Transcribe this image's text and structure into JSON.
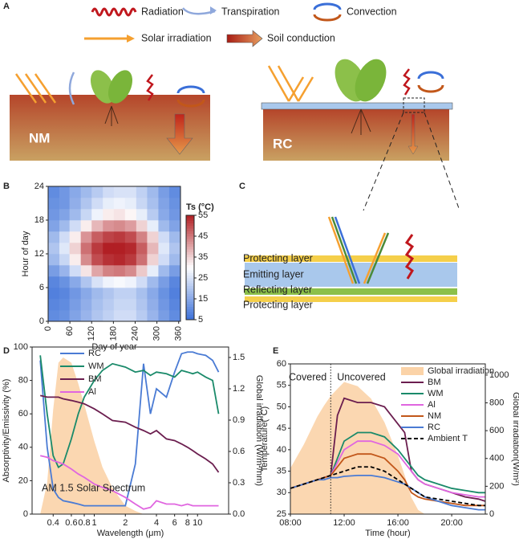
{
  "diagram_a": {
    "panel_label": "A",
    "legend": [
      "Radiation",
      "Transpiration",
      "Convection",
      "Solar irradiation",
      "Soil conduction"
    ],
    "labels": [
      "NM",
      "RC"
    ]
  },
  "diagram_c": {
    "panel_label": "C",
    "layers": [
      "Protecting layer",
      "Emitting layer",
      "Reflecting layer",
      "Protecting layer"
    ]
  },
  "chart_data": [
    {
      "type": "heatmap",
      "panel_label": "B",
      "x_label": "Day of year",
      "y_label": "Hour of day",
      "colorbar_label": "Ts (°C)",
      "xbins": [
        0,
        31,
        59,
        90,
        120,
        151,
        181,
        212,
        243,
        273,
        304,
        334,
        365
      ],
      "ybins": [
        0,
        2,
        4,
        6,
        8,
        10,
        12,
        14,
        16,
        18,
        20,
        22,
        24
      ],
      "xlim": [
        0,
        365
      ],
      "ylim": [
        0,
        24
      ],
      "xticks": [
        0,
        60,
        120,
        180,
        240,
        300,
        360
      ],
      "yticks": [
        0,
        6,
        12,
        18,
        24
      ],
      "clim": [
        5,
        55
      ],
      "cticks": [
        5,
        15,
        25,
        35,
        45,
        55
      ],
      "colorscale": [
        "#3a6fd8",
        "#ffffff",
        "#b11f24"
      ],
      "values": [
        [
          10,
          11,
          14,
          17,
          20,
          22,
          24,
          24,
          21,
          17,
          13,
          10
        ],
        [
          9,
          10,
          13,
          16,
          19,
          21,
          23,
          23,
          20,
          16,
          12,
          9
        ],
        [
          8,
          9,
          12,
          15,
          18,
          20,
          22,
          22,
          19,
          15,
          11,
          8
        ],
        [
          9,
          11,
          15,
          20,
          25,
          28,
          29,
          28,
          24,
          18,
          13,
          9
        ],
        [
          13,
          17,
          24,
          33,
          40,
          44,
          45,
          43,
          36,
          27,
          18,
          13
        ],
        [
          18,
          23,
          32,
          43,
          50,
          53,
          54,
          52,
          46,
          35,
          24,
          18
        ],
        [
          20,
          26,
          35,
          46,
          52,
          55,
          55,
          54,
          48,
          38,
          26,
          20
        ],
        [
          18,
          24,
          32,
          42,
          48,
          51,
          52,
          50,
          44,
          35,
          24,
          18
        ],
        [
          14,
          18,
          24,
          32,
          38,
          42,
          43,
          41,
          35,
          27,
          18,
          14
        ],
        [
          12,
          14,
          18,
          23,
          28,
          32,
          33,
          31,
          27,
          21,
          15,
          12
        ],
        [
          11,
          12,
          16,
          20,
          24,
          27,
          28,
          27,
          23,
          19,
          14,
          11
        ],
        [
          10,
          12,
          15,
          18,
          21,
          24,
          25,
          25,
          22,
          18,
          13,
          10
        ]
      ]
    },
    {
      "type": "line",
      "panel_label": "D",
      "x_label": "Wavelength (μm)",
      "y_label": "Absorptivity/Emissivity (%)",
      "y2_label": "Global irradiation (W/m²/nm)",
      "xlog": true,
      "xlim": [
        0.25,
        20
      ],
      "xticks": [
        0.4,
        0.6,
        0.8,
        1,
        2,
        4,
        6,
        8,
        10
      ],
      "ylim": [
        0,
        100
      ],
      "yticks": [
        0,
        20,
        40,
        60,
        80,
        100
      ],
      "y2lim": [
        0,
        1.6
      ],
      "y2ticks": [
        {
          "value": 0,
          "label": "0.0"
        },
        0.3,
        0.6,
        0.9,
        1.2,
        1.5
      ],
      "x": [
        0.3,
        0.35,
        0.4,
        0.45,
        0.5,
        0.6,
        0.7,
        0.8,
        1,
        1.2,
        1.5,
        2,
        2.5,
        3,
        3.5,
        4,
        5,
        6,
        7,
        8,
        9,
        10,
        12,
        14,
        16
      ],
      "series": [
        {
          "name": "AM 1.5 Solar Spectrum",
          "color": "#fbd3a8",
          "axis": "y2",
          "fill": true,
          "legend": false,
          "values": [
            0.0,
            0.3,
            1.0,
            1.45,
            1.5,
            1.45,
            1.25,
            1.05,
            0.7,
            0.45,
            0.25,
            0.08,
            0.03,
            0,
            0,
            0,
            0,
            0,
            0,
            0,
            0,
            0,
            0,
            0,
            0
          ]
        },
        {
          "name": "RC",
          "color": "#4a7bd4",
          "values": [
            92,
            40,
            15,
            10,
            8,
            7,
            6,
            5,
            5,
            5,
            5,
            5,
            30,
            90,
            60,
            75,
            70,
            85,
            96,
            97,
            97,
            96,
            95,
            92,
            85
          ]
        },
        {
          "name": "WM",
          "color": "#1a8a6a",
          "values": [
            95,
            60,
            35,
            28,
            30,
            45,
            60,
            70,
            80,
            86,
            90,
            88,
            85,
            86,
            83,
            85,
            84,
            82,
            86,
            85,
            84,
            85,
            82,
            80,
            60
          ]
        },
        {
          "name": "BM",
          "color": "#6b1e4f",
          "values": [
            71,
            70,
            70,
            70,
            69,
            68,
            67,
            66,
            63,
            60,
            56,
            55,
            52,
            50,
            48,
            50,
            45,
            44,
            42,
            40,
            38,
            36,
            33,
            30,
            25
          ]
        },
        {
          "name": "Al",
          "color": "#e066e0",
          "values": [
            35,
            34,
            32,
            31,
            30,
            27,
            24,
            22,
            18,
            16,
            14,
            10,
            6,
            3,
            4,
            8,
            6,
            6,
            5,
            6,
            5,
            5,
            5,
            5,
            5
          ]
        }
      ]
    },
    {
      "type": "line",
      "panel_label": "E",
      "x_label": "Time (hour)",
      "y_label": "Temperature(°C)",
      "y2_label": "Global irradiation(W/m²)",
      "xlim": [
        8,
        22.5
      ],
      "xticks": [
        {
          "value": 8,
          "label": "08:00"
        },
        {
          "value": 12,
          "label": "12:00"
        },
        {
          "value": 16,
          "label": "16:00"
        },
        {
          "value": 20,
          "label": "20:00"
        }
      ],
      "ylim": [
        25,
        60
      ],
      "yticks": [
        25,
        30,
        35,
        40,
        45,
        50,
        55,
        60
      ],
      "y2lim": [
        0,
        1080
      ],
      "y2ticks": [
        0,
        200,
        400,
        600,
        800,
        1000
      ],
      "divider_x": 11,
      "annotations": [
        "Covered",
        "Uncovered"
      ],
      "x": [
        8,
        9,
        10,
        10.5,
        11,
        11.5,
        12,
        13,
        14,
        15,
        16,
        16.5,
        17,
        17.5,
        18,
        19,
        20,
        21,
        22,
        22.5
      ],
      "series": [
        {
          "name": "Global irradiation",
          "color": "#fbd3a8",
          "axis": "y2",
          "fill": true,
          "values": [
            330,
            500,
            700,
            780,
            850,
            900,
            950,
            920,
            830,
            660,
            420,
            280,
            120,
            30,
            0,
            0,
            0,
            0,
            0,
            0
          ]
        },
        {
          "name": "BM",
          "color": "#6b1e4f",
          "values": [
            31,
            32,
            33,
            33.5,
            34,
            48,
            52,
            51,
            51,
            50,
            46,
            44,
            35,
            33,
            32,
            31,
            30,
            29,
            28.5,
            28
          ]
        },
        {
          "name": "WM",
          "color": "#1a8a6a",
          "values": [
            31,
            32,
            33,
            33.5,
            34,
            38,
            42,
            44,
            44,
            43,
            40,
            38,
            36,
            34,
            33,
            32,
            31,
            30.5,
            30,
            30
          ]
        },
        {
          "name": "Al",
          "color": "#e066e0",
          "values": [
            31,
            32,
            33,
            33.5,
            34,
            37,
            40,
            42,
            42,
            41,
            39,
            37,
            35,
            33,
            32,
            31,
            30,
            29.5,
            29,
            29
          ]
        },
        {
          "name": "NM",
          "color": "#c2571a",
          "values": [
            31,
            32,
            33,
            33.5,
            34,
            36,
            38,
            39,
            39,
            38,
            35,
            33,
            30,
            29,
            28.5,
            28,
            27.5,
            27,
            27,
            27
          ]
        },
        {
          "name": "RC",
          "color": "#4a7bd4",
          "values": [
            31,
            32,
            33,
            33,
            33.5,
            33.5,
            33.8,
            34,
            34,
            33.5,
            32.5,
            32,
            31,
            30,
            29,
            28,
            27,
            26.5,
            26,
            26
          ]
        },
        {
          "name": "Ambient T",
          "color": "#000000",
          "dash": true,
          "values": [
            31,
            32,
            33,
            33.5,
            34,
            34.5,
            35,
            36,
            36,
            35,
            33,
            32,
            31,
            30,
            29,
            28.5,
            28,
            27.5,
            27,
            27
          ]
        }
      ]
    }
  ]
}
